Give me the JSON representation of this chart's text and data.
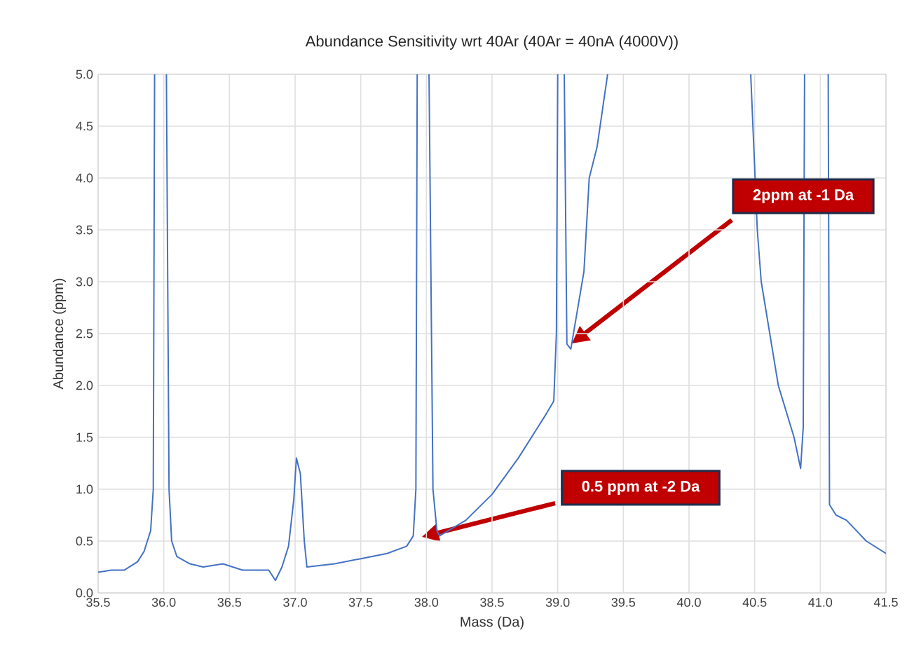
{
  "chart_data": {
    "type": "line",
    "title": "Abundance Sensitivity wrt 40Ar (40Ar = 40nA (4000V))",
    "xlabel": "Mass (Da)",
    "ylabel": "Abundance (ppm)",
    "xlim": [
      35.5,
      41.5
    ],
    "ylim": [
      0,
      5
    ],
    "xticks": [
      35.5,
      {
        "value": 36,
        "label": "36.0"
      },
      36.5,
      {
        "value": 37,
        "label": "37.0"
      },
      37.5,
      {
        "value": 38,
        "label": "38.0"
      },
      38.5,
      {
        "value": 39,
        "label": "39.0"
      },
      39.5,
      {
        "value": 40,
        "label": "40.0"
      },
      40.5,
      {
        "value": 41,
        "label": "41.0"
      },
      41.5
    ],
    "yticks": [
      {
        "value": 0,
        "label": "0.0"
      },
      0.5,
      {
        "value": 1,
        "label": "1.0"
      },
      1.5,
      {
        "value": 2,
        "label": "2.0"
      },
      2.5,
      {
        "value": 3,
        "label": "3.0"
      },
      3.5,
      {
        "value": 4,
        "label": "4.0"
      },
      4.5,
      {
        "value": 5,
        "label": "5.0"
      }
    ],
    "grid": true,
    "marker": "none",
    "line_style": "solid",
    "annotations": [
      "2ppm at -1 Da",
      "0.5 ppm at -2 Da"
    ],
    "series": [
      {
        "color": "#4472c4",
        "x": [
          35.5,
          35.6,
          35.7,
          35.8,
          35.85,
          35.9,
          35.92,
          35.93,
          35.97,
          36.02,
          36.04,
          36.06,
          36.1,
          36.2,
          36.3,
          36.45,
          36.6,
          36.8,
          36.85,
          36.9,
          36.95,
          36.99,
          37.01,
          37.04,
          37.07,
          37.09,
          37.3,
          37.5,
          37.7,
          37.85,
          37.9,
          37.92,
          37.93,
          37.97,
          38.02,
          38.05,
          38.08,
          38.1,
          38.3,
          38.5,
          38.7,
          38.9,
          38.97,
          38.99,
          39.0,
          39.03,
          39.05,
          39.07,
          39.1,
          39.2,
          39.24,
          39.3,
          39.38,
          39.9,
          40.47,
          40.52,
          40.55,
          40.68,
          40.8,
          40.85,
          40.87,
          40.88,
          40.97,
          41.06,
          41.07,
          41.12,
          41.2,
          41.35,
          41.5
        ],
        "values": [
          0.2,
          0.22,
          0.22,
          0.3,
          0.4,
          0.6,
          1.0,
          5.0,
          null,
          5.0,
          1.0,
          0.5,
          0.35,
          0.28,
          0.25,
          0.28,
          0.22,
          0.22,
          0.12,
          0.25,
          0.45,
          0.9,
          1.3,
          1.15,
          0.5,
          0.25,
          0.28,
          0.33,
          0.38,
          0.45,
          0.55,
          1.0,
          5.0,
          null,
          5.0,
          1.0,
          0.6,
          0.55,
          0.7,
          0.95,
          1.3,
          1.7,
          1.85,
          2.5,
          5.0,
          null,
          5.0,
          2.4,
          2.35,
          3.1,
          4.0,
          4.3,
          5.0,
          null,
          5.0,
          3.5,
          3.0,
          2.0,
          1.5,
          1.2,
          1.6,
          5.0,
          null,
          5.0,
          0.85,
          0.75,
          0.7,
          0.5,
          0.38
        ]
      }
    ]
  }
}
